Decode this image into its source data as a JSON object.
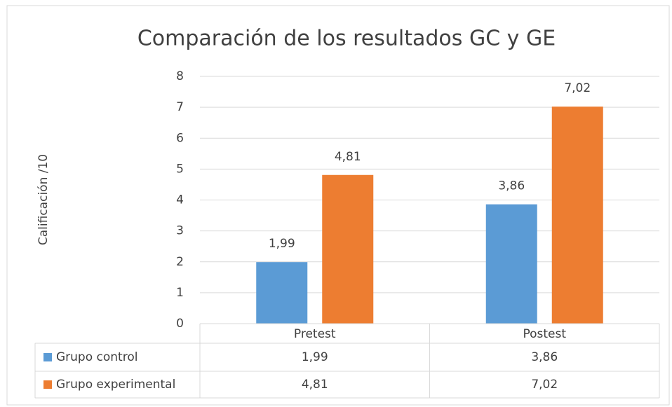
{
  "chart_data": {
    "type": "bar",
    "title": "Comparación de los resultados GC y GE",
    "y_label": "Calificación /10",
    "categories": [
      "Pretest",
      "Postest"
    ],
    "series": [
      {
        "name": "Grupo control",
        "color": "#5b9bd5",
        "values": [
          1.99,
          3.86
        ],
        "value_labels": [
          "1,99",
          "3,86"
        ]
      },
      {
        "name": "Grupo experimental",
        "color": "#ed7d31",
        "values": [
          4.81,
          7.02
        ],
        "value_labels": [
          "4,81",
          "7,02"
        ]
      }
    ],
    "ylim": [
      0,
      8
    ],
    "yticks": [
      0,
      1,
      2,
      3,
      4,
      5,
      6,
      7,
      8
    ],
    "grid": true,
    "data_table": true
  }
}
